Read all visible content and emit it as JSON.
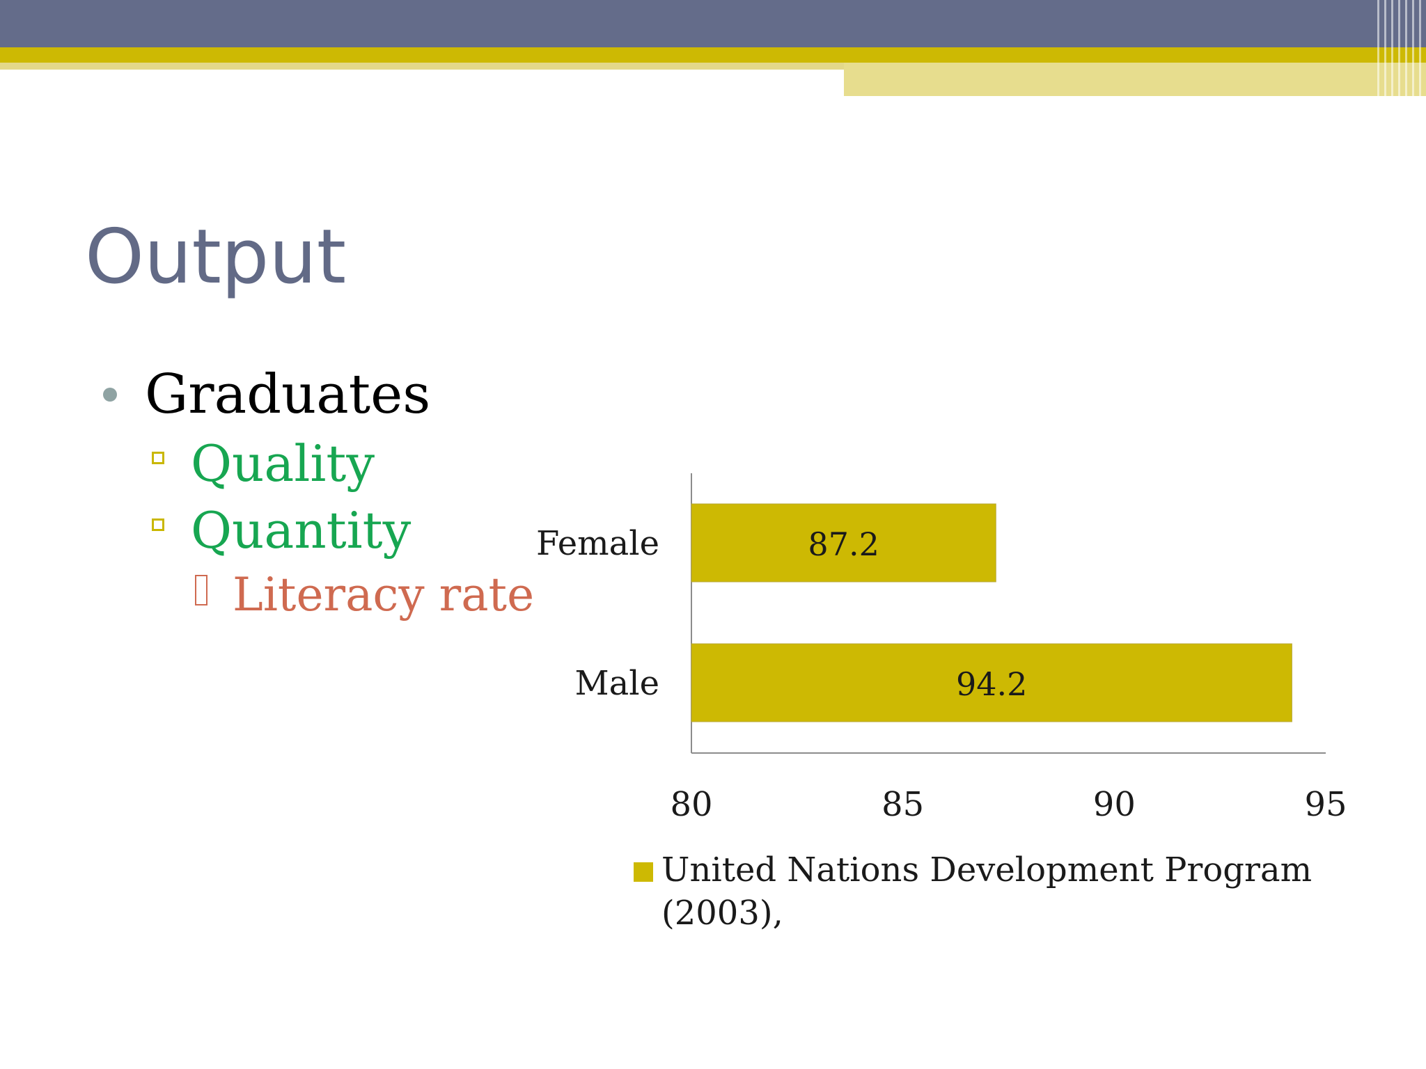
{
  "slide": {
    "title": "Output",
    "bullets": {
      "level1": "Graduates",
      "level2": [
        "Quality",
        "Quantity"
      ],
      "level3": "Literacy rate"
    }
  },
  "colors": {
    "header": "#646c8a",
    "accent_yellow": "#cdb903",
    "bar": "#cdb903",
    "title": "#626a86",
    "subbullet": "#17a651",
    "subsubbullet": "#cf6a50"
  },
  "chart_data": {
    "type": "bar",
    "orientation": "horizontal",
    "categories": [
      "Female",
      "Male"
    ],
    "series": [
      {
        "name": "United Nations Development Program (2003),",
        "values": [
          87.2,
          94.2
        ]
      }
    ],
    "data_labels": [
      "87.2",
      "94.2"
    ],
    "xlim": [
      80,
      95
    ],
    "x_ticks": [
      "80",
      "85",
      "90",
      "95"
    ],
    "title": "",
    "xlabel": "",
    "ylabel": "",
    "grid": false,
    "legend": {
      "position": "bottom",
      "lines": [
        "United Nations Development Program",
        "(2003),"
      ]
    }
  }
}
